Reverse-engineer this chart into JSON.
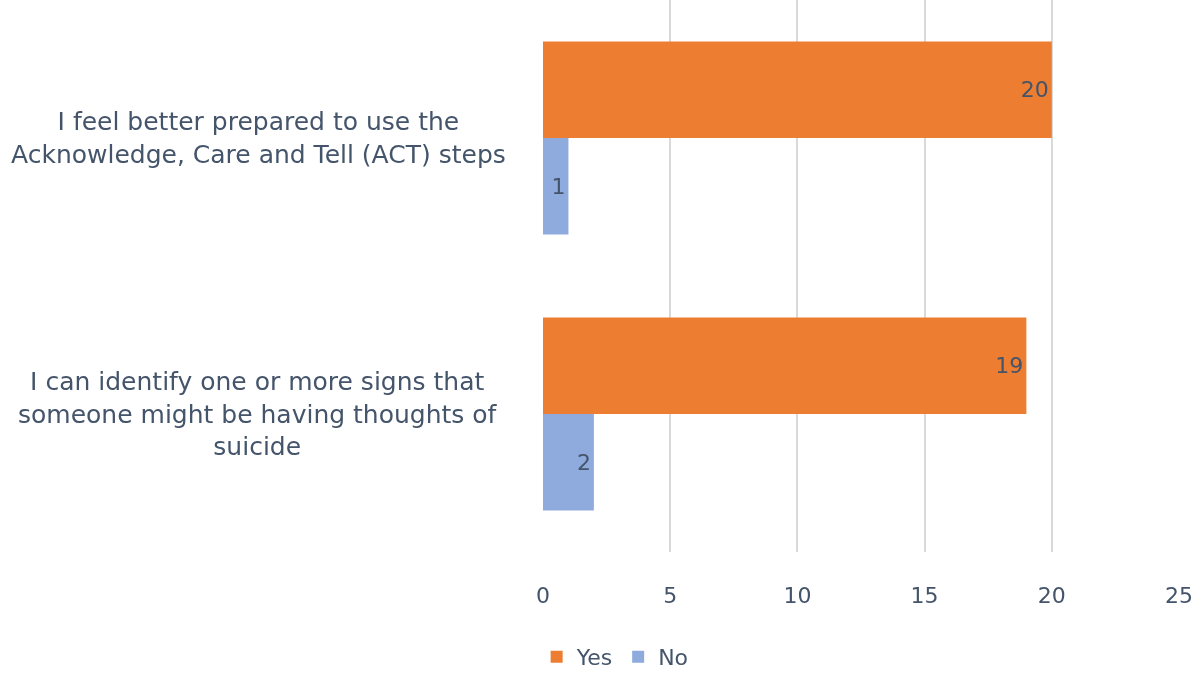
{
  "chart_data": {
    "type": "bar",
    "orientation": "horizontal",
    "categories": [
      "I feel better prepared to use the Acknowledge, Care and Tell (ACT) steps",
      "I can identify one or more signs that someone might be having thoughts of suicide"
    ],
    "series": [
      {
        "name": "Yes",
        "color": "#ed7d31",
        "values": [
          20,
          19
        ]
      },
      {
        "name": "No",
        "color": "#8faadc",
        "values": [
          1,
          2
        ]
      }
    ],
    "xlim": [
      0,
      25
    ],
    "xticks": [
      0,
      5,
      10,
      15,
      20,
      25
    ],
    "grid": "x",
    "legend": "bottom",
    "data_labels": true
  }
}
